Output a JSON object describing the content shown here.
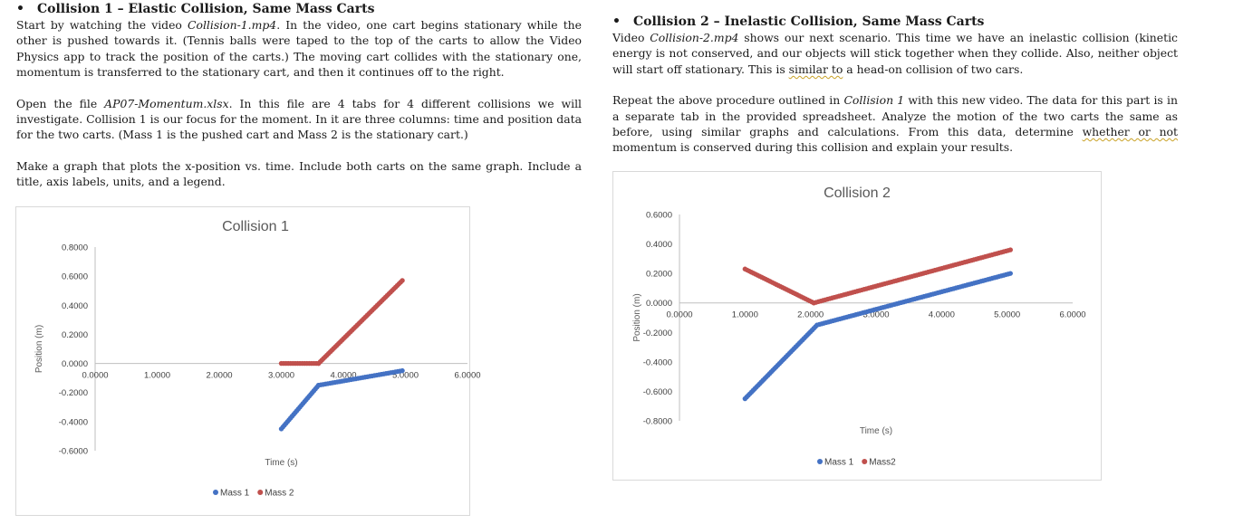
{
  "left": {
    "bullet": "•",
    "title": "Collision 1 – Elastic Collision, Same Mass Carts",
    "p1": [
      {
        "t": "Start by watching the video "
      },
      {
        "t": "Collision-1.mp4",
        "i": true
      },
      {
        "t": ". In the video, one cart begins stationary while the other is pushed towards it. (Tennis balls were taped to the top of the carts to allow the Video Physics app to track the position of the carts.) The moving cart collides with the stationary one, momentum is transferred to the stationary cart, and then it continues off to the right."
      }
    ],
    "p2": [
      {
        "t": "Open the file "
      },
      {
        "t": "AP07-Momentum.xlsx",
        "i": true
      },
      {
        "t": ". In this file are 4 tabs for 4 different collisions we will investigate. Collision 1 is our focus for the moment. In it are three columns: time and position data for the two carts. (Mass 1 is the pushed cart and Mass 2 is the stationary cart.)"
      }
    ],
    "p3": [
      {
        "t": "Make a graph that plots the x-position vs. time. Include both carts on the same graph. Include a title, axis labels, units, and a legend."
      }
    ]
  },
  "right": {
    "bullet": "•",
    "title": "Collision 2 – Inelastic Collision, Same Mass Carts",
    "p1": [
      {
        "t": "Video "
      },
      {
        "t": "Collision-2.mp4",
        "i": true
      },
      {
        "t": " shows our next scenario. This time we have an inelastic collision (kinetic energy is not conserved, and our objects will stick together when they collide. Also, neither object will start off stationary. This is "
      },
      {
        "t": "similar to",
        "s": true
      },
      {
        "t": " a head-on collision of two cars."
      }
    ],
    "p2": [
      {
        "t": "Repeat the above procedure outlined in "
      },
      {
        "t": "Collision 1",
        "i": true
      },
      {
        "t": " with this new video. The data for this part is in a separate tab in the provided spreadsheet. Analyze the motion of the two carts the same as before, using similar graphs and calculations. From this data, determine "
      },
      {
        "t": "whether or not",
        "s": true
      },
      {
        "t": " momentum is conserved during this collision and explain your results."
      }
    ]
  },
  "chart_data": [
    {
      "type": "scatter",
      "title": "Collision 1",
      "xlabel": "Time (s)",
      "ylabel": "Position (m)",
      "xlim": [
        0,
        6
      ],
      "ylim": [
        -0.6,
        0.8
      ],
      "xticks": [
        "0.0000",
        "1.0000",
        "2.0000",
        "3.0000",
        "4.0000",
        "5.0000",
        "6.0000"
      ],
      "yticks": [
        "0.8000",
        "0.6000",
        "0.4000",
        "0.2000",
        "0.0000",
        "-0.2000",
        "-0.4000",
        "-0.6000"
      ],
      "legend": "bottom",
      "series": [
        {
          "name": "Mass 1",
          "color": "#4472c4",
          "segments": [
            [
              3.0,
              -0.45,
              3.6,
              -0.15
            ],
            [
              3.6,
              -0.15,
              4.95,
              -0.05
            ]
          ]
        },
        {
          "name": "Mass 2",
          "color": "#c0504d",
          "segments": [
            [
              3.0,
              0.0,
              3.6,
              0.0
            ],
            [
              3.6,
              0.0,
              4.95,
              0.57
            ]
          ]
        }
      ]
    },
    {
      "type": "scatter",
      "title": "Collision 2",
      "xlabel": "Time (s)",
      "ylabel": "Position (m)",
      "xlim": [
        0,
        6
      ],
      "ylim": [
        -0.8,
        0.6
      ],
      "xticks": [
        "0.0000",
        "1.0000",
        "2.0000",
        "3.0000",
        "4.0000",
        "5.0000",
        "6.0000"
      ],
      "yticks": [
        "0.6000",
        "0.4000",
        "0.2000",
        "0.0000",
        "-0.2000",
        "-0.4000",
        "-0.6000",
        "-0.8000"
      ],
      "legend": "bottom",
      "series": [
        {
          "name": "Mass 1",
          "color": "#4472c4",
          "segments": [
            [
              1.0,
              -0.65,
              2.1,
              -0.15
            ],
            [
              2.1,
              -0.15,
              5.05,
              0.2
            ]
          ]
        },
        {
          "name": "Mass2",
          "color": "#c0504d",
          "segments": [
            [
              1.0,
              0.23,
              2.05,
              0.0
            ],
            [
              2.05,
              0.0,
              5.05,
              0.36
            ]
          ]
        }
      ]
    }
  ]
}
